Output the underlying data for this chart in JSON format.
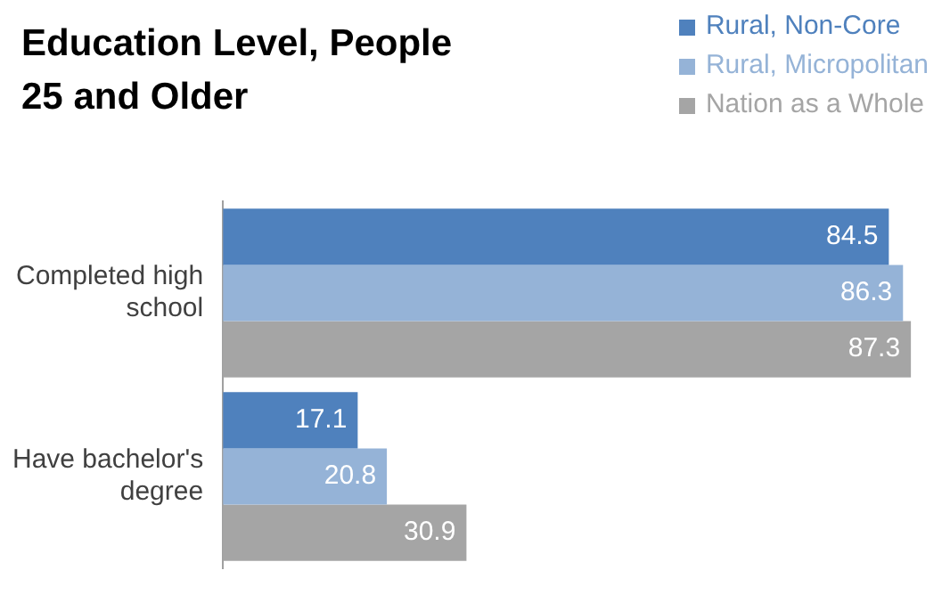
{
  "chart_data": {
    "type": "bar",
    "orientation": "horizontal",
    "title": "Education Level, People 25 and Older",
    "categories": [
      "Completed high school",
      "Have bachelor's degree"
    ],
    "series": [
      {
        "name": "Rural, Non-Core",
        "color": "#4f81bd",
        "values": [
          84.5,
          17.1
        ]
      },
      {
        "name": "Rural, Micropolitan",
        "color": "#95b3d7",
        "values": [
          86.3,
          20.8
        ]
      },
      {
        "name": "Nation as a Whole",
        "color": "#a5a5a5",
        "values": [
          87.3,
          30.9
        ]
      }
    ],
    "data_labels": true,
    "legend": "top right",
    "tick_labels": "y"
  }
}
